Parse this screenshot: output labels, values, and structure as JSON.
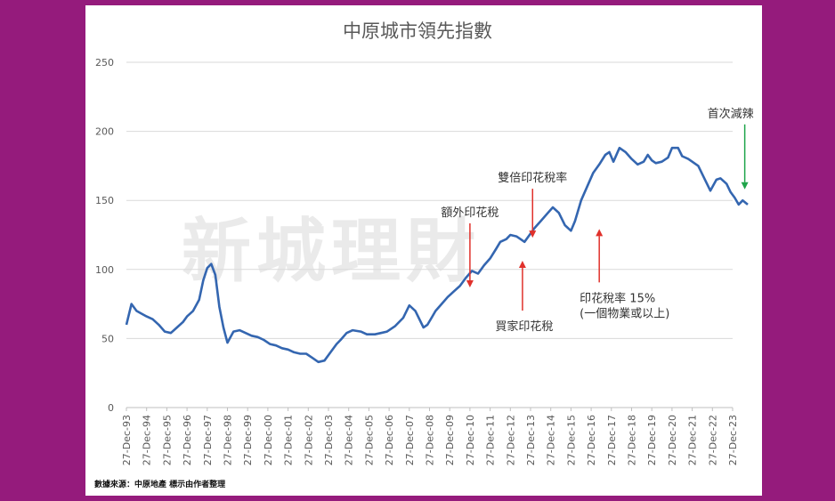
{
  "page": {
    "background": "#951b7c",
    "panel_background": "#ffffff"
  },
  "watermark": "新城理財",
  "source_note": "數據來源：中原地產  標示由作者整理",
  "chart_data": {
    "type": "line",
    "title": "中原城市領先指數",
    "xlabel": "",
    "ylabel": "",
    "ylim": [
      0,
      250
    ],
    "yticks": [
      "0",
      "50",
      "100",
      "150",
      "200",
      "250"
    ],
    "ytick_values": [
      0,
      50,
      100,
      150,
      200,
      250
    ],
    "xlim": [
      1993,
      2023
    ],
    "x_tick_labels": [
      "27-Dec-93",
      "27-Dec-94",
      "27-Dec-95",
      "27-Dec-96",
      "27-Dec-97",
      "27-Dec-98",
      "27-Dec-99",
      "27-Dec-00",
      "27-Dec-01",
      "27-Dec-02",
      "27-Dec-03",
      "27-Dec-04",
      "27-Dec-05",
      "27-Dec-06",
      "27-Dec-07",
      "27-Dec-08",
      "27-Dec-09",
      "27-Dec-10",
      "27-Dec-11",
      "27-Dec-12",
      "27-Dec-13",
      "27-Dec-14",
      "27-Dec-15",
      "27-Dec-16",
      "27-Dec-17",
      "27-Dec-18",
      "27-Dec-19",
      "27-Dec-20",
      "27-Dec-21",
      "27-Dec-22",
      "27-Dec-23"
    ],
    "grid": true,
    "line_color": "#3466b0",
    "series": [
      {
        "name": "",
        "x": [
          1993.0,
          1993.25,
          1993.5,
          1993.75,
          1994.0,
          1994.3,
          1994.6,
          1994.9,
          1995.2,
          1995.5,
          1995.8,
          1996.0,
          1996.3,
          1996.6,
          1996.8,
          1997.0,
          1997.2,
          1997.4,
          1997.6,
          1997.8,
          1998.0,
          1998.3,
          1998.6,
          1998.9,
          1999.2,
          1999.5,
          1999.8,
          2000.1,
          2000.4,
          2000.7,
          2001.0,
          2001.3,
          2001.6,
          2001.9,
          2002.2,
          2002.5,
          2002.8,
          2003.1,
          2003.4,
          2003.6,
          2003.9,
          2004.2,
          2004.6,
          2004.9,
          2005.3,
          2005.6,
          2005.9,
          2006.3,
          2006.7,
          2007.0,
          2007.3,
          2007.7,
          2007.9,
          2008.1,
          2008.3,
          2008.6,
          2008.9,
          2009.2,
          2009.5,
          2009.8,
          2010.1,
          2010.4,
          2010.7,
          2011.0,
          2011.3,
          2011.5,
          2011.8,
          2012.0,
          2012.3,
          2012.5,
          2012.7,
          2012.9,
          2013.2,
          2013.5,
          2013.8,
          2014.1,
          2014.4,
          2014.7,
          2015.0,
          2015.2,
          2015.5,
          2015.8,
          2016.1,
          2016.4,
          2016.7,
          2016.9,
          2017.1,
          2017.4,
          2017.7,
          2018.0,
          2018.3,
          2018.6,
          2018.8,
          2019.0,
          2019.2,
          2019.5,
          2019.8,
          2020.0,
          2020.3,
          2020.5,
          2020.8,
          2021.0,
          2021.3,
          2021.6,
          2021.9,
          2022.2,
          2022.4,
          2022.7,
          2022.9,
          2023.1,
          2023.3,
          2023.5,
          2023.75
        ],
        "y": [
          60,
          75,
          70,
          68,
          66,
          64,
          60,
          55,
          54,
          58,
          62,
          66,
          70,
          78,
          92,
          101,
          104,
          96,
          73,
          58,
          47,
          55,
          56,
          54,
          52,
          51,
          49,
          46,
          45,
          43,
          42,
          40,
          39,
          39,
          36,
          33,
          34,
          40,
          46,
          49,
          54,
          56,
          55,
          53,
          53,
          54,
          55,
          59,
          65,
          74,
          70,
          58,
          60,
          65,
          70,
          75,
          80,
          84,
          88,
          94,
          99,
          97,
          103,
          108,
          115,
          120,
          122,
          125,
          124,
          122,
          120,
          124,
          130,
          135,
          140,
          145,
          141,
          132,
          128,
          135,
          150,
          160,
          170,
          176,
          183,
          185,
          178,
          188,
          185,
          180,
          176,
          178,
          183,
          179,
          177,
          178,
          181,
          188,
          188,
          182,
          180,
          178,
          175,
          166,
          157,
          165,
          166,
          162,
          156,
          152,
          147,
          150,
          147
        ]
      }
    ],
    "annotations": [
      {
        "lines": [
          "額外印花稅"
        ],
        "x": 2010.0,
        "y": 87
      },
      {
        "lines": [
          "雙倍印花稅率"
        ],
        "x": 2013.1,
        "y": 123
      },
      {
        "lines": [
          "買家印花稅"
        ],
        "x": 2012.6,
        "y": 105
      },
      {
        "lines": [
          "印花稅率 15%",
          "(一個物業或以上)"
        ],
        "x": 2016.4,
        "y": 128
      },
      {
        "lines": [
          "首次減辣"
        ],
        "x": 2023.6,
        "y": 158
      }
    ]
  }
}
